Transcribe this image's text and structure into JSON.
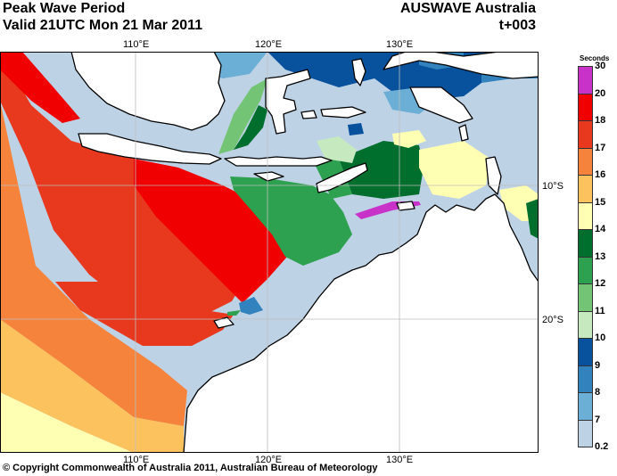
{
  "header": {
    "title": "Peak Wave Period",
    "valid": "Valid 21UTC Mon 21 Mar 2011",
    "model": "AUSWAVE Australia",
    "step": "t+003"
  },
  "axes": {
    "top_lon": [
      "110°E",
      "120°E",
      "130°E"
    ],
    "bottom_lon": [
      "110°E",
      "120°E",
      "130°E"
    ],
    "right_lat": [
      "10°S",
      "20°S"
    ]
  },
  "legend": {
    "title": "Seconds",
    "entries": [
      {
        "label": "30",
        "color": "#c832c8"
      },
      {
        "label": "20",
        "color": "#c832c8"
      },
      {
        "label": "18",
        "color": "#f00000"
      },
      {
        "label": "17",
        "color": "#e8391f"
      },
      {
        "label": "16",
        "color": "#f5833c"
      },
      {
        "label": "15",
        "color": "#fcc25e"
      },
      {
        "label": "14",
        "color": "#ffffb4"
      },
      {
        "label": "13",
        "color": "#006e2d"
      },
      {
        "label": "12",
        "color": "#2ea150"
      },
      {
        "label": "11",
        "color": "#74c476"
      },
      {
        "label": "10",
        "color": "#c7e9c0"
      },
      {
        "label": "9",
        "color": "#08519c"
      },
      {
        "label": "8",
        "color": "#3182bd"
      },
      {
        "label": "7",
        "color": "#6baed6"
      },
      {
        "label": "0.2",
        "color": "#bed2e6"
      }
    ]
  },
  "colors": {
    "land": "#ffffff",
    "coast": "#000000",
    "grid": "#bdbdbd"
  },
  "copyright": "© Copyright Commonwealth of Australia 2011, Australian Bureau of Meteorology"
}
